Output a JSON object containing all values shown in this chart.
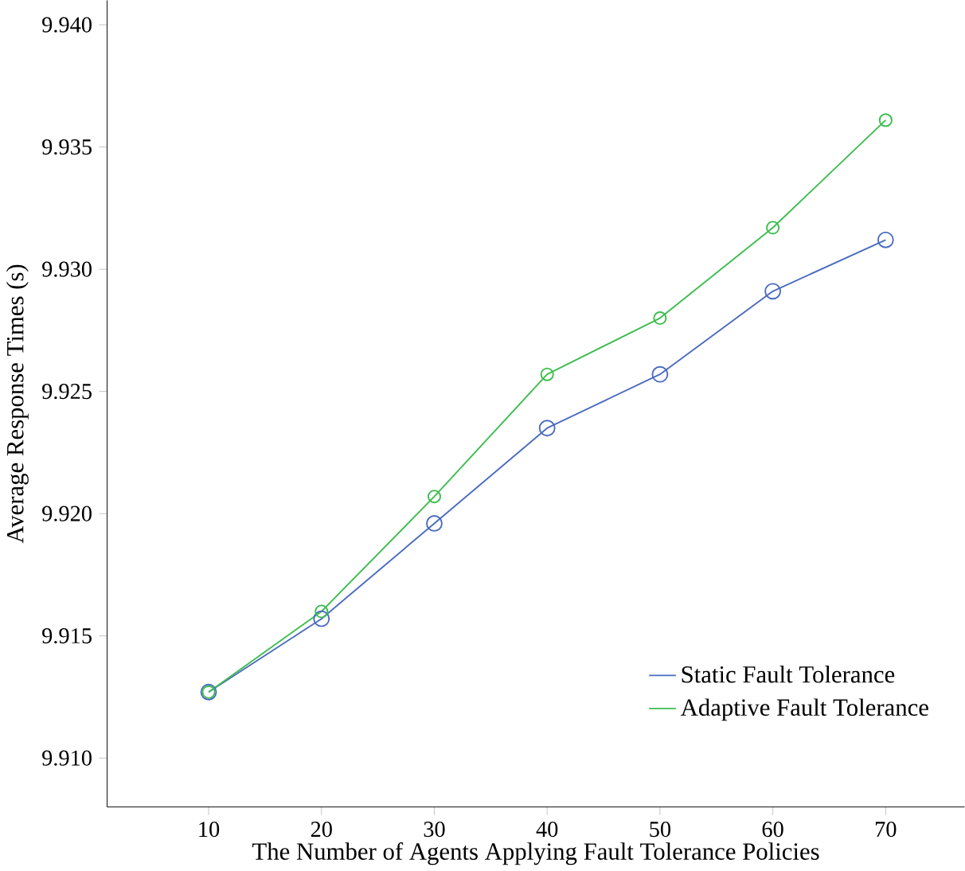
{
  "chart_data": {
    "type": "line",
    "xlabel": "The Number of Agents Applying Fault Tolerance Policies",
    "ylabel": "Average Response Times (s)",
    "x": [
      10,
      20,
      30,
      40,
      50,
      60,
      70
    ],
    "series": [
      {
        "name": "Static Fault Tolerance",
        "color": "#4a6bbf",
        "values": [
          9.9127,
          9.9157,
          9.9196,
          9.9235,
          9.9257,
          9.9291,
          9.9312
        ]
      },
      {
        "name": "Adaptive Fault Tolerance",
        "color": "#3dbd4f",
        "values": [
          9.9127,
          9.916,
          9.9207,
          9.9257,
          9.928,
          9.9317,
          9.9361
        ]
      }
    ],
    "xlim": [
      1,
      77
    ],
    "ylim": [
      9.908,
      9.941
    ],
    "xticks": [
      10,
      20,
      30,
      40,
      50,
      60,
      70
    ],
    "yticks": [
      {
        "value": 9.91,
        "label": "9.910"
      },
      {
        "value": 9.915,
        "label": "9.915"
      },
      {
        "value": 9.92,
        "label": "9.920"
      },
      {
        "value": 9.925,
        "label": "9.925"
      },
      {
        "value": 9.93,
        "label": "9.930"
      },
      {
        "value": 9.935,
        "label": "9.935"
      },
      {
        "value": 9.94,
        "label": "9.940"
      }
    ],
    "marker": "circle",
    "line_style": "solid",
    "legend": "bottom right",
    "grid": false
  }
}
